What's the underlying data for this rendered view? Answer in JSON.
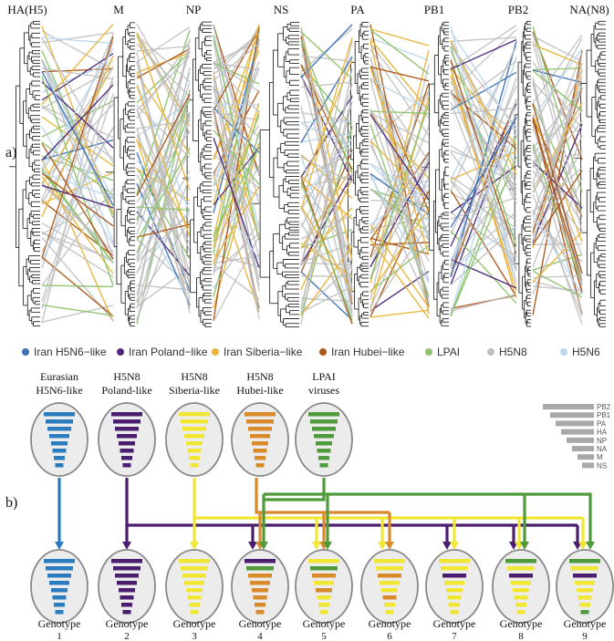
{
  "panel_a": {
    "label": "a)",
    "segments": [
      "HA(H5)",
      "M",
      "NP",
      "NS",
      "PA",
      "PB1",
      "PB2",
      "NA(N8)"
    ],
    "legend": [
      {
        "label": "Iran H5N6−like",
        "color": "#3b6fb6"
      },
      {
        "label": "Iran Poland−like",
        "color": "#4b2a7a"
      },
      {
        "label": "Iran Siberia−like",
        "color": "#e8b53a"
      },
      {
        "label": "Iran Hubei−like",
        "color": "#a9571d"
      },
      {
        "label": "LPAI",
        "color": "#8cc36b"
      },
      {
        "label": "H5N8",
        "color": "#bdbdbd"
      },
      {
        "label": "H5N6",
        "color": "#bcd7ee"
      }
    ]
  },
  "panel_b": {
    "label": "b)",
    "sources": [
      {
        "line1": "Eurasian",
        "line2": "H5N6-like",
        "color": "#2b7bbf"
      },
      {
        "line1": "H5N8",
        "line2": "Poland-like",
        "color": "#4b1d6e"
      },
      {
        "line1": "H5N8",
        "line2": "Siberia-like",
        "color": "#f2e634"
      },
      {
        "line1": "H5N8",
        "line2": "Hubei-like",
        "color": "#d98a2b"
      },
      {
        "line1": "LPAI",
        "line2": "viruses",
        "color": "#4f9a3a"
      }
    ],
    "segment_key": [
      "PB2",
      "PB1",
      "PA",
      "HA",
      "NP",
      "NA",
      "M",
      "NS"
    ],
    "genotypes": [
      {
        "label": "Genotype",
        "num": "1",
        "bars": [
          "#2b7bbf",
          "#2b7bbf",
          "#2b7bbf",
          "#2b7bbf",
          "#2b7bbf",
          "#2b7bbf",
          "#2b7bbf",
          "#2b7bbf"
        ]
      },
      {
        "label": "Genotype",
        "num": "2",
        "bars": [
          "#4b1d6e",
          "#4b1d6e",
          "#4b1d6e",
          "#4b1d6e",
          "#4b1d6e",
          "#4b1d6e",
          "#4b1d6e",
          "#4b1d6e"
        ]
      },
      {
        "label": "Genotype",
        "num": "3",
        "bars": [
          "#f2e634",
          "#f2e634",
          "#f2e634",
          "#f2e634",
          "#f2e634",
          "#f2e634",
          "#f2e634",
          "#f2e634"
        ]
      },
      {
        "label": "Genotype",
        "num": "4",
        "bars": [
          "#4b1d6e",
          "#4f9a3a",
          "#d98a2b",
          "#d98a2b",
          "#d98a2b",
          "#d98a2b",
          "#d98a2b",
          "#d98a2b"
        ]
      },
      {
        "label": "Genotype",
        "num": "5",
        "bars": [
          "#f2e634",
          "#4f9a3a",
          "#d98a2b",
          "#f2e634",
          "#d98a2b",
          "#f2e634",
          "#f2e634",
          "#f2e634"
        ]
      },
      {
        "label": "Genotype",
        "num": "6",
        "bars": [
          "#f2e634",
          "#f2e634",
          "#d98a2b",
          "#f2e634",
          "#f2e634",
          "#d98a2b",
          "#f2e634",
          "#f2e634"
        ]
      },
      {
        "label": "Genotype",
        "num": "7",
        "bars": [
          "#f2e634",
          "#f2e634",
          "#4b1d6e",
          "#f2e634",
          "#f2e634",
          "#f2e634",
          "#f2e634",
          "#f2e634"
        ]
      },
      {
        "label": "Genotype",
        "num": "8",
        "bars": [
          "#4f9a3a",
          "#f2e634",
          "#4b1d6e",
          "#f2e634",
          "#f2e634",
          "#f2e634",
          "#f2e634",
          "#f2e634"
        ]
      },
      {
        "label": "Genotype",
        "num": "9",
        "bars": [
          "#4f9a3a",
          "#f2e634",
          "#4b1d6e",
          "#f2e634",
          "#f2e634",
          "#f2e634",
          "#f2e634",
          "#4f9a3a"
        ]
      }
    ]
  }
}
